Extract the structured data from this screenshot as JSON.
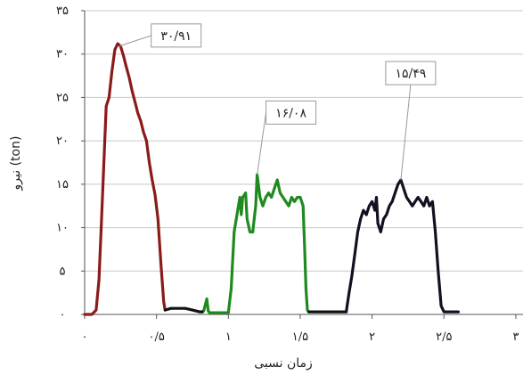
{
  "chart_data": {
    "type": "line",
    "xlabel": "زمان نسبی",
    "ylabel": "نیرو (ton)",
    "xlim": [
      0,
      3.05
    ],
    "ylim": [
      0,
      35
    ],
    "grid": true,
    "x_ticks": [
      0,
      0.5,
      1,
      1.5,
      2,
      2.5,
      3
    ],
    "x_tick_labels": [
      "۰",
      "۰/۵",
      "۱",
      "۱/۵",
      "۲",
      "۲/۵",
      "۳"
    ],
    "y_ticks": [
      0,
      5,
      10,
      15,
      20,
      25,
      30,
      35
    ],
    "y_tick_labels": [
      "۰",
      "۵",
      "۱۰",
      "۱۵",
      "۲۰",
      "۲۵",
      "۳۰",
      "۳۵"
    ],
    "series": [
      {
        "color": "#8b1a1a",
        "points": [
          [
            0.0,
            0.0
          ],
          [
            0.05,
            0.0
          ],
          [
            0.08,
            0.5
          ],
          [
            0.1,
            4.0
          ],
          [
            0.12,
            12.0
          ],
          [
            0.14,
            20.0
          ],
          [
            0.15,
            24.0
          ],
          [
            0.17,
            25.0
          ],
          [
            0.19,
            28.0
          ],
          [
            0.21,
            30.5
          ],
          [
            0.23,
            31.2
          ],
          [
            0.25,
            30.9
          ],
          [
            0.27,
            29.8
          ],
          [
            0.29,
            28.5
          ],
          [
            0.31,
            27.3
          ],
          [
            0.33,
            25.8
          ],
          [
            0.35,
            24.5
          ],
          [
            0.37,
            23.2
          ],
          [
            0.39,
            22.3
          ],
          [
            0.41,
            21.0
          ],
          [
            0.43,
            20.0
          ],
          [
            0.45,
            17.5
          ],
          [
            0.47,
            15.5
          ],
          [
            0.49,
            13.8
          ],
          [
            0.51,
            11.0
          ],
          [
            0.53,
            6.0
          ],
          [
            0.55,
            1.5
          ],
          [
            0.56,
            0.5
          ]
        ]
      },
      {
        "color": "#111111",
        "points": [
          [
            0.56,
            0.5
          ],
          [
            0.6,
            0.7
          ],
          [
            0.7,
            0.7
          ],
          [
            0.75,
            0.5
          ],
          [
            0.8,
            0.3
          ],
          [
            0.82,
            0.3
          ],
          [
            0.83,
            0.5
          ]
        ]
      },
      {
        "color": "#1f8a1f",
        "points": [
          [
            0.83,
            0.5
          ],
          [
            0.85,
            1.8
          ],
          [
            0.86,
            0.4
          ],
          [
            0.87,
            0.2
          ],
          [
            0.9,
            0.2
          ],
          [
            0.95,
            0.2
          ],
          [
            1.0,
            0.2
          ],
          [
            1.02,
            3.0
          ],
          [
            1.04,
            9.5
          ],
          [
            1.06,
            11.5
          ],
          [
            1.08,
            13.5
          ],
          [
            1.09,
            11.5
          ],
          [
            1.1,
            13.5
          ],
          [
            1.12,
            14.0
          ],
          [
            1.13,
            11.0
          ],
          [
            1.15,
            9.5
          ],
          [
            1.17,
            9.5
          ],
          [
            1.18,
            11.0
          ],
          [
            1.19,
            12.5
          ],
          [
            1.2,
            16.1
          ],
          [
            1.22,
            13.5
          ],
          [
            1.24,
            12.5
          ],
          [
            1.26,
            13.5
          ],
          [
            1.28,
            14.0
          ],
          [
            1.3,
            13.5
          ],
          [
            1.32,
            14.5
          ],
          [
            1.34,
            15.5
          ],
          [
            1.36,
            14.0
          ],
          [
            1.38,
            13.5
          ],
          [
            1.4,
            13.0
          ],
          [
            1.42,
            12.5
          ],
          [
            1.44,
            13.5
          ],
          [
            1.46,
            13.0
          ],
          [
            1.48,
            13.5
          ],
          [
            1.5,
            13.5
          ],
          [
            1.52,
            12.5
          ],
          [
            1.53,
            8.0
          ],
          [
            1.54,
            3.0
          ],
          [
            1.55,
            0.5
          ],
          [
            1.56,
            0.3
          ]
        ]
      },
      {
        "color": "#111111",
        "points": [
          [
            1.56,
            0.3
          ],
          [
            1.6,
            0.3
          ],
          [
            1.7,
            0.3
          ],
          [
            1.8,
            0.3
          ],
          [
            1.82,
            0.3
          ]
        ]
      },
      {
        "color": "#111122",
        "points": [
          [
            1.82,
            0.3
          ],
          [
            1.84,
            2.5
          ],
          [
            1.86,
            4.5
          ],
          [
            1.88,
            7.0
          ],
          [
            1.9,
            9.5
          ],
          [
            1.92,
            11.0
          ],
          [
            1.94,
            12.0
          ],
          [
            1.96,
            11.5
          ],
          [
            1.98,
            12.5
          ],
          [
            2.0,
            13.0
          ],
          [
            2.02,
            12.0
          ],
          [
            2.03,
            13.5
          ],
          [
            2.04,
            10.5
          ],
          [
            2.06,
            9.5
          ],
          [
            2.08,
            11.0
          ],
          [
            2.1,
            11.5
          ],
          [
            2.12,
            12.5
          ],
          [
            2.14,
            13.0
          ],
          [
            2.16,
            14.0
          ],
          [
            2.18,
            15.0
          ],
          [
            2.2,
            15.5
          ],
          [
            2.22,
            14.5
          ],
          [
            2.24,
            13.5
          ],
          [
            2.26,
            13.0
          ],
          [
            2.28,
            12.5
          ],
          [
            2.3,
            13.0
          ],
          [
            2.32,
            13.5
          ],
          [
            2.34,
            13.0
          ],
          [
            2.36,
            12.5
          ],
          [
            2.38,
            13.5
          ],
          [
            2.4,
            12.5
          ],
          [
            2.42,
            13.0
          ],
          [
            2.44,
            9.5
          ],
          [
            2.46,
            5.0
          ],
          [
            2.48,
            1.0
          ],
          [
            2.5,
            0.3
          ],
          [
            2.55,
            0.3
          ],
          [
            2.6,
            0.3
          ]
        ]
      }
    ],
    "annotations": [
      {
        "text": "۳۰/۹۱",
        "x": 0.24,
        "y": 30.91
      },
      {
        "text": "۱۶/۰۸",
        "x": 1.2,
        "y": 16.08
      },
      {
        "text": "۱۵/۴۹",
        "x": 2.2,
        "y": 15.49
      }
    ]
  }
}
